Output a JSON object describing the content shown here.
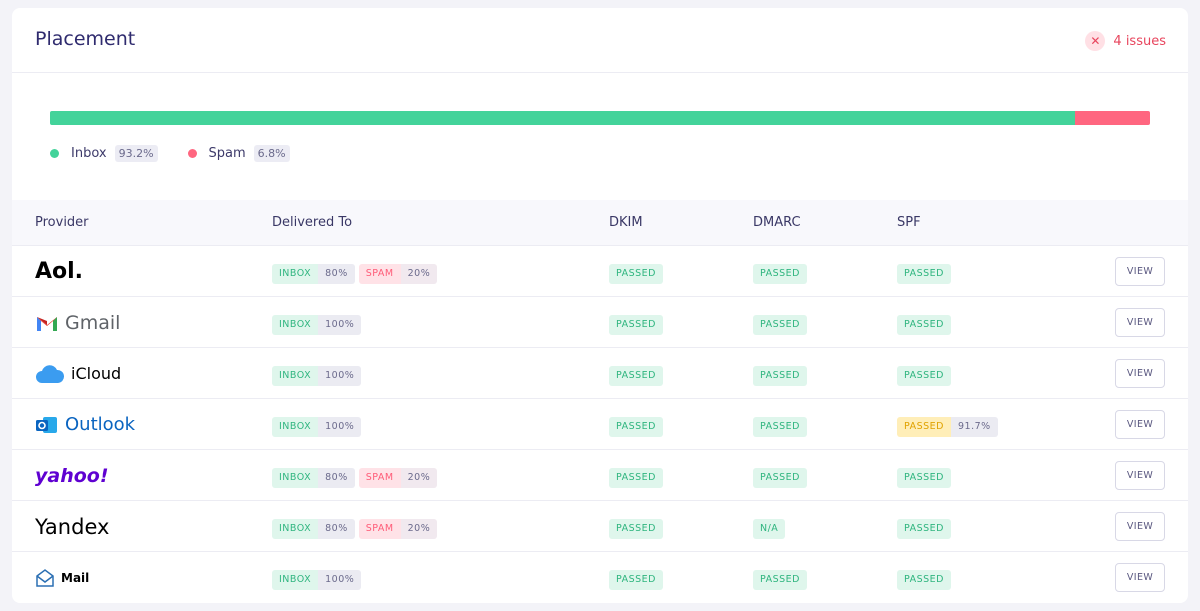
{
  "header": {
    "title": "Placement",
    "issues": "4 issues"
  },
  "placement": {
    "segments": [
      {
        "label": "Inbox",
        "value": 93.2,
        "value_label": "93.2%",
        "color": "#43d39a"
      },
      {
        "label": "Spam",
        "value": 6.8,
        "value_label": "6.8%",
        "color": "#ff6680"
      }
    ]
  },
  "table": {
    "columns": [
      "Provider",
      "Delivered To",
      "DKIM",
      "DMARC",
      "SPF"
    ],
    "rows": [
      {
        "provider": "Aol.",
        "delivered": [
          {
            "label": "INBOX",
            "value": "80%"
          },
          {
            "label": "SPAM",
            "value": "20%"
          }
        ],
        "dkim": "PASSED",
        "dmarc": "PASSED",
        "spf": {
          "label": "PASSED"
        },
        "action": "VIEW"
      },
      {
        "provider": "Gmail",
        "delivered": [
          {
            "label": "INBOX",
            "value": "100%"
          }
        ],
        "dkim": "PASSED",
        "dmarc": "PASSED",
        "spf": {
          "label": "PASSED"
        },
        "action": "VIEW"
      },
      {
        "provider": "iCloud",
        "delivered": [
          {
            "label": "INBOX",
            "value": "100%"
          }
        ],
        "dkim": "PASSED",
        "dmarc": "PASSED",
        "spf": {
          "label": "PASSED"
        },
        "action": "VIEW"
      },
      {
        "provider": "Outlook",
        "delivered": [
          {
            "label": "INBOX",
            "value": "100%"
          }
        ],
        "dkim": "PASSED",
        "dmarc": "PASSED",
        "spf": {
          "label": "PASSED",
          "value": "91.7%"
        },
        "action": "VIEW"
      },
      {
        "provider": "yahoo!",
        "delivered": [
          {
            "label": "INBOX",
            "value": "80%"
          },
          {
            "label": "SPAM",
            "value": "20%"
          }
        ],
        "dkim": "PASSED",
        "dmarc": "PASSED",
        "spf": {
          "label": "PASSED"
        },
        "action": "VIEW"
      },
      {
        "provider": "Yandex",
        "delivered": [
          {
            "label": "INBOX",
            "value": "80%"
          },
          {
            "label": "SPAM",
            "value": "20%"
          }
        ],
        "dkim": "PASSED",
        "dmarc": "N/A",
        "spf": {
          "label": "PASSED"
        },
        "action": "VIEW"
      },
      {
        "provider": "Mail",
        "delivered": [
          {
            "label": "INBOX",
            "value": "100%"
          }
        ],
        "dkim": "PASSED",
        "dmarc": "PASSED",
        "spf": {
          "label": "PASSED"
        },
        "action": "VIEW"
      }
    ]
  }
}
